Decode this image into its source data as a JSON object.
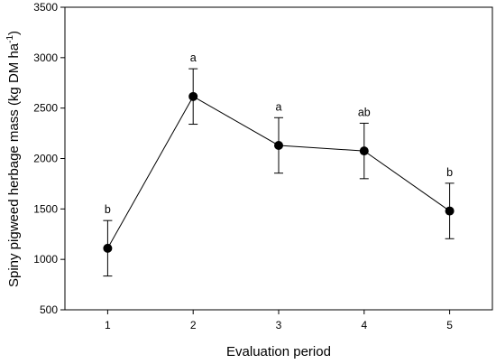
{
  "chart_data": {
    "type": "line",
    "xlabel": "Evaluation period",
    "ylabel_main": "Spiny pigweed herbage mass (kg DM ha",
    "ylabel_sup": "-1",
    "ylabel_end": ")",
    "x": [
      1,
      2,
      3,
      4,
      5
    ],
    "x_ticks": [
      "1",
      "2",
      "3",
      "4",
      "5"
    ],
    "xlim": [
      0.5,
      5.5
    ],
    "ylim": [
      500,
      3500
    ],
    "y_ticks": [
      "500",
      "1000",
      "1500",
      "2000",
      "2500",
      "3000",
      "3500"
    ],
    "y_tick_values": [
      500,
      1000,
      1500,
      2000,
      2500,
      3000,
      3500
    ],
    "series": [
      {
        "values": [
          1110,
          2615,
          2130,
          2075,
          1480
        ],
        "error": [
          275,
          275,
          275,
          275,
          275
        ]
      }
    ],
    "annotations": [
      "b",
      "a",
      "a",
      "ab",
      "b"
    ],
    "grid": false,
    "marker": "filled-circle",
    "color": "#000000"
  }
}
